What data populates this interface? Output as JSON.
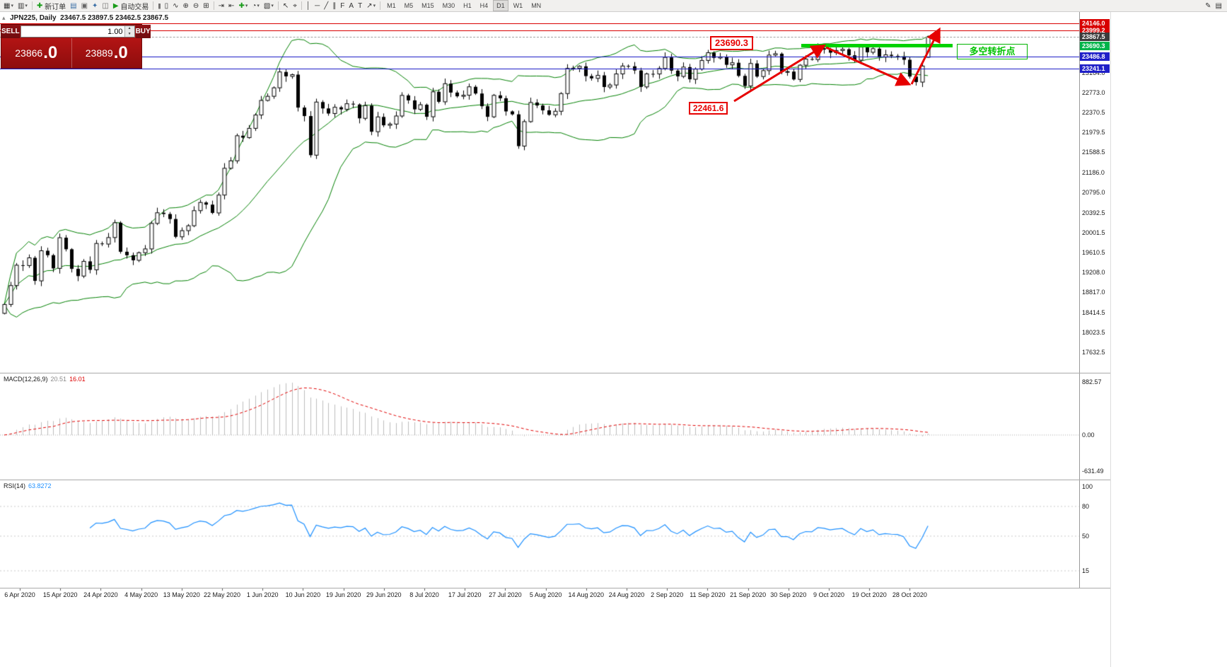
{
  "icons": {
    "new_chart": "▦",
    "profiles": "▥",
    "market_watch": "▤",
    "data_window": "▣",
    "navigator": "✦",
    "terminal": "◫",
    "new_order_plus": "✚",
    "autoplay": "▶",
    "bars": "|||",
    "candles": "▯",
    "line_chart": "∿",
    "zoom_in": "⊕",
    "zoom_out": "⊖",
    "tile_windows": "⊞",
    "auto_scroll": "⇥",
    "chart_shift": "⇤",
    "indicators_plus": "✚",
    "periods_clock": "◔",
    "templates": "▧",
    "cursor": "↖",
    "crosshair": "⌖",
    "vertical_line": "│",
    "horizontal_line": "─",
    "trendline": "╱",
    "channel": "∥",
    "fibonacci": "F",
    "text": "A",
    "text_label": "T",
    "arrows": "↗",
    "dropdown": "▾",
    "edit": "✎",
    "page": "▤",
    "collapse_panel": "▴",
    "spin_up": "▲",
    "spin_down": "▼"
  },
  "toolbar": {
    "new_order_label": "新订单",
    "auto_trading_label": "自动交易",
    "timeframes": [
      "M1",
      "M5",
      "M15",
      "M30",
      "H1",
      "H4",
      "D1",
      "W1",
      "MN"
    ],
    "active_timeframe": "D1"
  },
  "chart_header": {
    "ohlc_line": "JPN225, Daily  23467.5 23897.5 23462.5 23867.5"
  },
  "trade_panel": {
    "sell_label": "SELL",
    "buy_label": "BUY",
    "volume": "1.00",
    "sell_price_main": "23866",
    "sell_price_pips": ".0",
    "buy_price_main": "23889",
    "buy_price_pips": ".0"
  },
  "annotations": {
    "resistance_price_label": "23690.3",
    "swing_low_label": "22461.6",
    "note_text": "多空转折点"
  },
  "indicators": {
    "macd": {
      "label": "MACD(12,26,9)",
      "value_main": "20.51",
      "value_signal": "16.01",
      "axis_max": "882.57",
      "axis_zero": "0.00",
      "axis_min": "-631.49"
    },
    "rsi": {
      "label": "RSI(14)",
      "value": "63.8272",
      "axis_labels": [
        "100",
        "80",
        "50",
        "15"
      ],
      "levels": [
        80,
        50,
        15
      ]
    }
  },
  "chart_data": {
    "type": "candlestick",
    "symbol": "JPN225",
    "timeframe": "Daily",
    "last_ohlc": {
      "open": 23467.5,
      "high": 23897.5,
      "low": 23462.5,
      "close": 23867.5
    },
    "bid": 23866.0,
    "ask": 23889.0,
    "ylim": [
      17240,
      24350
    ],
    "y_ticks": [
      "23164.0",
      "22773.0",
      "22370.5",
      "21979.5",
      "21588.5",
      "21186.0",
      "20795.0",
      "20392.5",
      "20001.5",
      "19610.5",
      "19208.0",
      "18817.0",
      "18414.5",
      "18023.5",
      "17632.5"
    ],
    "x_labels": [
      "6 Apr 2020",
      "15 Apr 2020",
      "24 Apr 2020",
      "4 May 2020",
      "13 May 2020",
      "22 May 2020",
      "1 Jun 2020",
      "10 Jun 2020",
      "19 Jun 2020",
      "29 Jun 2020",
      "8 Jul 2020",
      "17 Jul 2020",
      "27 Jul 2020",
      "5 Aug 2020",
      "14 Aug 2020",
      "24 Aug 2020",
      "2 Sep 2020",
      "11 Sep 2020",
      "21 Sep 2020",
      "30 Sep 2020",
      "9 Oct 2020",
      "19 Oct 2020",
      "28 Oct 2020"
    ],
    "line_labels": [
      {
        "value": "24146.0",
        "color": "#d80000",
        "type": "resistance-1"
      },
      {
        "value": "23999.2",
        "color": "#d80000",
        "type": "resistance-2"
      },
      {
        "value": "23867.5",
        "color": "#3c3c3c",
        "type": "bid"
      },
      {
        "value": "23690.3",
        "color": "#00b44a",
        "type": "trendline"
      },
      {
        "value": "23486.8",
        "color": "#2020c8",
        "type": "support-1"
      },
      {
        "value": "23241.1",
        "color": "#2020c8",
        "type": "support-2"
      }
    ],
    "horizontal_lines": [
      {
        "price": 24146.0,
        "color": "#d80000"
      },
      {
        "price": 23999.2,
        "color": "#d80000"
      },
      {
        "price": 23486.8,
        "color": "#2020c8"
      },
      {
        "price": 23241.1,
        "color": "#2020c8"
      }
    ],
    "bid_line": 23867.5,
    "green_trendline_price": 23690.3,
    "bollinger": {
      "period": 20,
      "deviation": 2
    },
    "first_open": 18400,
    "closes": [
      18576,
      18950,
      19353,
      19346,
      19499,
      19043,
      19639,
      19551,
      19290,
      19897,
      19669,
      19281,
      19138,
      19429,
      19262,
      19783,
      19771,
      19900,
      20194,
      19619,
      19550,
      19450,
      19600,
      19675,
      20180,
      20391,
      20366,
      20267,
      19915,
      20037,
      20134,
      20433,
      20595,
      20552,
      20388,
      20741,
      21271,
      21419,
      21916,
      21878,
      22062,
      22326,
      22614,
      22696,
      22864,
      23178,
      23091,
      23125,
      22473,
      22305,
      21531,
      22582,
      22456,
      22355,
      22479,
      22437,
      22549,
      22534,
      22260,
      22512,
      21995,
      22288,
      22122,
      22146,
      22306,
      22714,
      22615,
      22438,
      22529,
      22291,
      22785,
      22587,
      22946,
      22770,
      22696,
      22717,
      22884,
      22751,
      22500,
      22290,
      22715,
      22657,
      22397,
      22339,
      21710,
      22195,
      22573,
      22514,
      22418,
      22330,
      22400,
      22750,
      23249,
      23250,
      23289,
      23096,
      23051,
      23110,
      22880,
      22920,
      23139,
      23296,
      23290,
      23208,
      22882,
      23140,
      23138,
      23247,
      23466,
      23205,
      23090,
      23274,
      23033,
      23235,
      23406,
      23559,
      23455,
      23476,
      23319,
      23360,
      23100,
      22900,
      23346,
      23087,
      23205,
      23511,
      23539,
      23185,
      23185,
      23030,
      23312,
      23434,
      23423,
      23647,
      23620,
      23559,
      23602,
      23627,
      23507,
      23411,
      23671,
      23567,
      23639,
      23474,
      23517,
      23494,
      23485,
      23419,
      23087,
      22977,
      23295,
      23867.5
    ]
  }
}
